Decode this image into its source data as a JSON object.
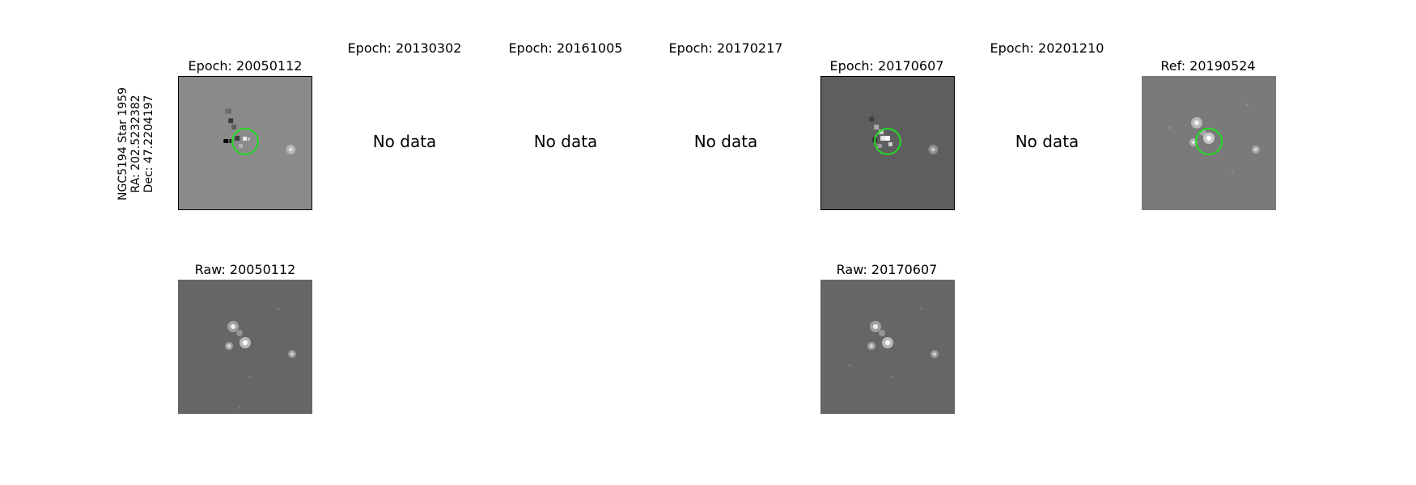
{
  "target": {
    "label_lines": [
      "NGC5194 Star 1959",
      "RA: 202.5232382",
      "Dec: 47.2204197"
    ]
  },
  "difference_row": [
    {
      "title": "Epoch: 20050112",
      "has_data": true
    },
    {
      "title": "Epoch: 20130302",
      "has_data": false,
      "message": "No data"
    },
    {
      "title": "Epoch: 20161005",
      "has_data": false,
      "message": "No data"
    },
    {
      "title": "Epoch: 20170217",
      "has_data": false,
      "message": "No data"
    },
    {
      "title": "Epoch: 20170607",
      "has_data": true
    },
    {
      "title": "Epoch: 20201210",
      "has_data": false,
      "message": "No data"
    },
    {
      "title": "Ref: 20190524",
      "has_data": true
    }
  ],
  "raw_row": [
    {
      "title": "Raw: 20050112"
    },
    {
      "title": "Raw: 20170607"
    }
  ],
  "colors": {
    "marker_circle": "#22dd22",
    "diff_background_1": "#8a8a8a",
    "diff_background_2": "#5e5e5e",
    "ref_background": "#7a7a7a",
    "raw_background": "#666666"
  }
}
